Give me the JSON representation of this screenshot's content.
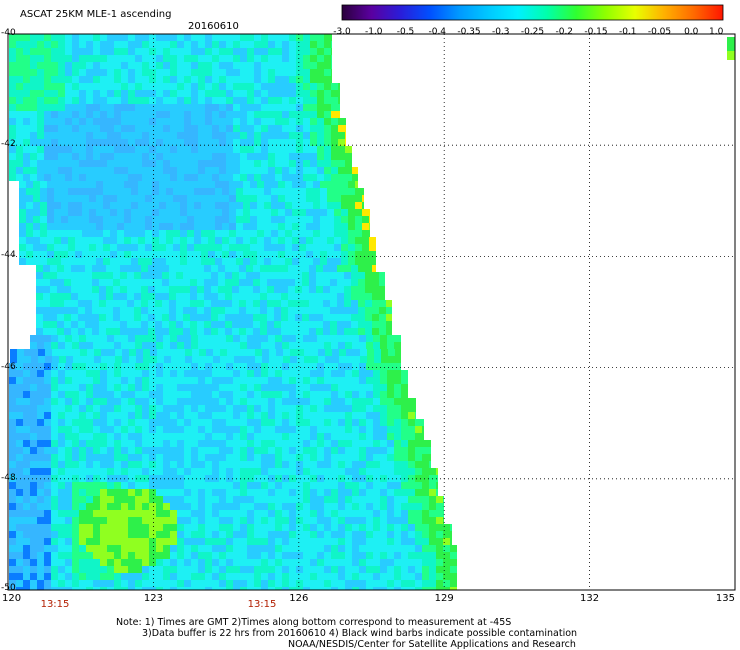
{
  "header": {
    "title": "ASCAT 25KM MLE-1 ascending",
    "date": "20160610"
  },
  "colorbar": {
    "labels": [
      "-3.0",
      "-1.0",
      "-0.5",
      "-0.4",
      "-0.35",
      "-0.3",
      "-0.25",
      "-0.2",
      "-0.15",
      "-0.1",
      "-0.05",
      "0.0",
      "1.0"
    ],
    "colors": [
      "#2b003c",
      "#5a00a0",
      "#2a1dd9",
      "#0050ff",
      "#0099ff",
      "#00c8ff",
      "#00f0ff",
      "#00ffaa",
      "#30ff30",
      "#90ff00",
      "#e8ff00",
      "#ffb000",
      "#ff6a00",
      "#ff1500"
    ]
  },
  "map": {
    "lat_range": [
      -50,
      -40
    ],
    "lon_range": [
      120,
      135
    ],
    "lat_labels": [
      "-40",
      "-42",
      "-44",
      "-46",
      "-48",
      "-50"
    ],
    "lon_labels": [
      "120",
      "123",
      "126",
      "129",
      "132",
      "135"
    ],
    "time_labels": [
      "13:15",
      "13:15"
    ],
    "field_colors": {
      "deep_blue": "#0a7dff",
      "blue": "#36b6ff",
      "light_blue": "#28ccff",
      "cyan": "#1ef0f4",
      "aqua": "#10f5c8",
      "mint": "#22ff88",
      "green": "#2ef04a",
      "lime": "#90ff20",
      "yellow": "#ffe800",
      "orange": "#ff9400"
    }
  },
  "notes": {
    "line1": "Note: 1) Times are GMT 2)Times along bottom correspond to measurement at -45S",
    "line2": "3)Data buffer is 22 hrs from 20160610 4) Black wind barbs indicate possible contamination",
    "line3": "NOAA/NESDIS/Center for Satellite Applications and Research"
  }
}
